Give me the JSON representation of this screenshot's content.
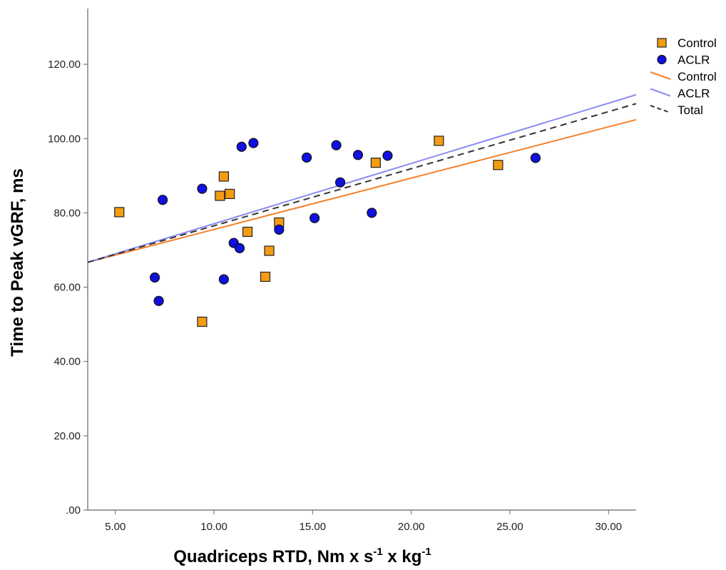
{
  "chart_data": {
    "type": "scatter",
    "xlabel": {
      "parts": [
        "Quadriceps RTD, Nm x s",
        "-1",
        " x kg",
        "-1"
      ]
    },
    "ylabel": "Time to Peak vGRF, ms",
    "xlim": [
      3.6,
      31.4
    ],
    "ylim": [
      0,
      135
    ],
    "xticks": [
      5,
      10,
      15,
      20,
      25,
      30
    ],
    "yticks": [
      0,
      20,
      40,
      60,
      80,
      100,
      120
    ],
    "xtick_labels": [
      "5.00",
      "10.00",
      "15.00",
      "20.00",
      "25.00",
      "30.00"
    ],
    "ytick_labels": [
      ".00",
      "20.00",
      "40.00",
      "60.00",
      "80.00",
      "100.00",
      "120.00"
    ],
    "grid": false,
    "legend_position": "top-right",
    "series": [
      {
        "name": "Control",
        "marker": "square",
        "color": "#F39C12",
        "points": [
          [
            5.2,
            80.2
          ],
          [
            9.4,
            50.7
          ],
          [
            10.3,
            84.6
          ],
          [
            10.5,
            89.8
          ],
          [
            10.8,
            85.1
          ],
          [
            11.7,
            74.9
          ],
          [
            12.6,
            62.8
          ],
          [
            12.8,
            69.8
          ],
          [
            13.3,
            77.4
          ],
          [
            18.2,
            93.5
          ],
          [
            21.4,
            99.4
          ],
          [
            24.4,
            92.9
          ]
        ]
      },
      {
        "name": "ACLR",
        "marker": "circle",
        "color": "#1010E0",
        "points": [
          [
            7.0,
            62.6
          ],
          [
            7.2,
            56.3
          ],
          [
            7.4,
            83.5
          ],
          [
            9.4,
            86.5
          ],
          [
            10.5,
            62.1
          ],
          [
            11.0,
            71.9
          ],
          [
            11.3,
            70.5
          ],
          [
            11.4,
            97.8
          ],
          [
            12.0,
            98.8
          ],
          [
            13.3,
            75.5
          ],
          [
            14.7,
            94.9
          ],
          [
            15.1,
            78.6
          ],
          [
            16.2,
            98.2
          ],
          [
            16.4,
            88.2
          ],
          [
            17.3,
            95.6
          ],
          [
            18.0,
            80.0
          ],
          [
            18.8,
            95.4
          ],
          [
            26.3,
            94.8
          ]
        ]
      }
    ],
    "fit_lines": [
      {
        "name": "Control",
        "color": "#F5812B",
        "dash": false,
        "from": [
          3.6,
          66.7
        ],
        "to": [
          31.4,
          105.1
        ]
      },
      {
        "name": "ACLR",
        "color": "#8A8CF0",
        "dash": false,
        "from": [
          3.6,
          66.7
        ],
        "to": [
          31.4,
          111.8
        ]
      },
      {
        "name": "Total",
        "color": "#333333",
        "dash": true,
        "from": [
          3.6,
          66.7
        ],
        "to": [
          31.4,
          109.4
        ]
      }
    ],
    "legend": [
      {
        "label": "Control",
        "kind": "square",
        "color": "#F39C12"
      },
      {
        "label": "ACLR",
        "kind": "circle",
        "color": "#1010E0"
      },
      {
        "label": "Control",
        "kind": "line",
        "color": "#F5812B"
      },
      {
        "label": "ACLR",
        "kind": "line",
        "color": "#8A8CF0"
      },
      {
        "label": "Total",
        "kind": "dashed",
        "color": "#333333"
      }
    ]
  }
}
